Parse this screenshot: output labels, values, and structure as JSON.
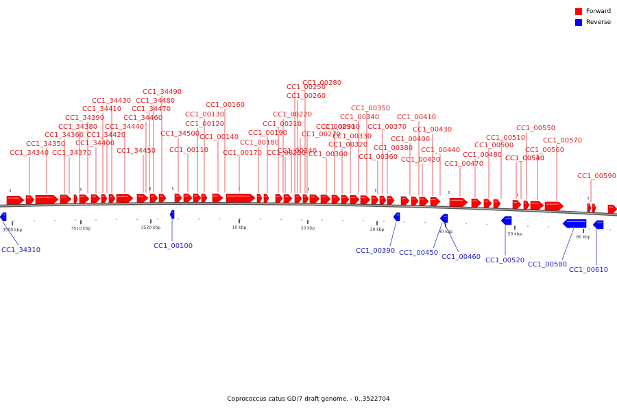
{
  "caption": "Coprococcus catus GD/7 draft genome. - 0..3522704",
  "legend": [
    {
      "label": "Forward",
      "color": "#ff0000"
    },
    {
      "label": "Reverse",
      "color": "#0000ff"
    }
  ],
  "colors": {
    "forward": "#ff0000",
    "reverse": "#0000ff",
    "forward_label": "#e41a1c",
    "reverse_label": "#1f1fbf"
  },
  "scale_labels": [
    "3500 kbp",
    "3510 kbp",
    "3520 kbp",
    "10 kbp",
    "20 kbp",
    "30 kbp",
    "40 kbp",
    "50 kbp",
    "60 kbp"
  ],
  "forward_genes": [
    "CC1_34340",
    "CC1_34350",
    "CC1_34360",
    "CC1_34370",
    "CC1_34380",
    "CC1_34390",
    "CC1_34400",
    "CC1_34410",
    "CC1_34420",
    "CC1_34430",
    "CC1_34440",
    "CC1_34450",
    "CC1_34460",
    "CC1_34470",
    "CC1_34480",
    "CC1_34490",
    "CC1_34500",
    "CC1_00110",
    "CC1_00120",
    "CC1_00130",
    "CC1_00140",
    "CC1_00160",
    "CC1_00170",
    "CC1_00180",
    "CC1_00190",
    "CC1_00210",
    "CC1_00220",
    "CC1_00230",
    "CC1_00240",
    "CC1_00250",
    "CC1_00260",
    "CC1_00270",
    "CC1_00280",
    "CC1_00290",
    "CC1_00300",
    "CC1_00310",
    "CC1_00320",
    "CC1_00330",
    "CC1_00340",
    "CC1_00350",
    "CC1_00360",
    "CC1_00370",
    "CC1_00380",
    "CC1_00400",
    "CC1_00410",
    "CC1_00420",
    "CC1_00430",
    "CC1_00440",
    "CC1_00470",
    "CC1_00480",
    "CC1_00500",
    "CC1_00510",
    "CC1_00530",
    "CC1_00540",
    "CC1_00550",
    "CC1_00560",
    "CC1_00570",
    "CC1_00590"
  ],
  "reverse_genes": [
    "CC1_34310",
    "CC1_00100",
    "CC1_00390",
    "CC1_00450",
    "CC1_00460",
    "CC1_00520",
    "CC1_00580",
    "CC1_00610"
  ]
}
